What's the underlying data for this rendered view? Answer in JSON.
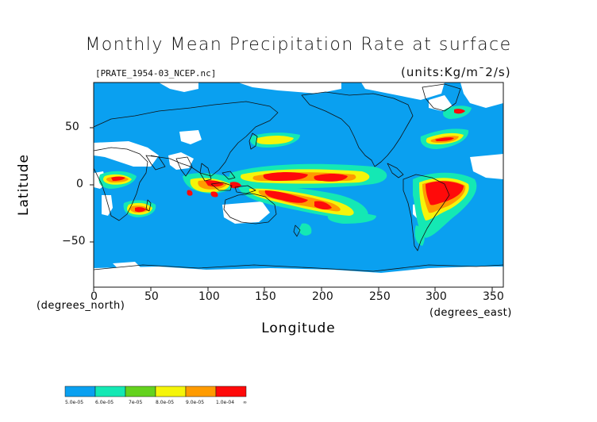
{
  "title": "Monthly Mean Precipitation Rate at surface",
  "file_label": "[PRATE_1954-03_NCEP.nc]",
  "units_label": "(units:Kg/m¯2/s)",
  "axes": {
    "ylabel": "Latitude",
    "xlabel": "Longitude",
    "y_unit": "(degrees_north)",
    "x_unit": "(degrees_east)",
    "yticks": [
      "50",
      "0",
      "−50"
    ],
    "xticks": [
      "0",
      "50",
      "100",
      "150",
      "200",
      "250",
      "300",
      "350"
    ],
    "xlim": [
      0,
      360
    ],
    "ylim": [
      -90,
      90
    ]
  },
  "colorbar": {
    "labels": [
      "5.0e-05",
      "6.0e-05",
      "7e-05",
      "8.0e-05",
      "9.0e-05",
      "1.0e-04",
      "∞"
    ],
    "colors": [
      "#0aa0f0",
      "#14e8b4",
      "#64d21e",
      "#f5f50a",
      "#ff9b00",
      "#ff0a0a"
    ]
  },
  "map_colors": {
    "ocean_base": "#0aa0f0",
    "no_data": "#ffffff",
    "coast": "#111111"
  }
}
